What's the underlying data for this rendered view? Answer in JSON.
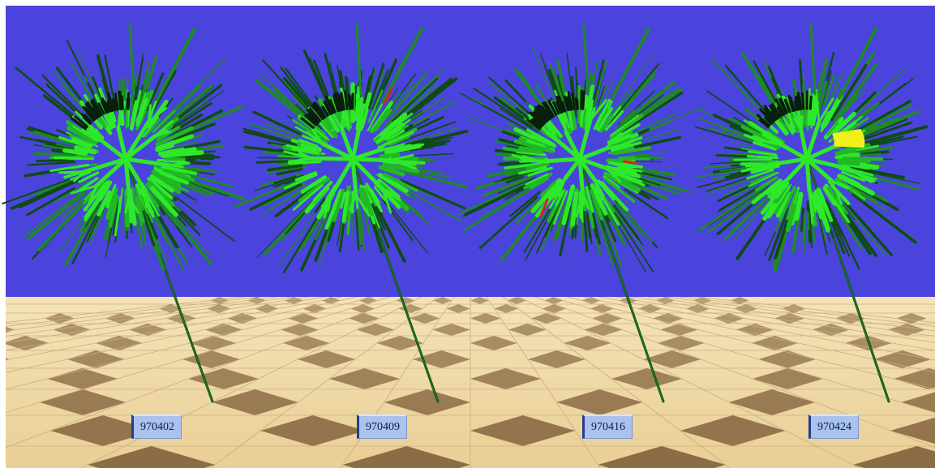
{
  "scene": {
    "sky_color": "#4a44dc",
    "floor_light": "#f1dcaa",
    "floor_dark": "#8a6a45",
    "branch_green": "#2ee82a",
    "branch_dark": "#0e4a14",
    "highlight_red": "#e0201c",
    "highlight_yellow": "#f2ef1a"
  },
  "snapshots": [
    {
      "label": "970402",
      "highlight": "none"
    },
    {
      "label": "970409",
      "highlight": "red"
    },
    {
      "label": "970416",
      "highlight": "red"
    },
    {
      "label": "970424",
      "highlight": "yellow"
    }
  ]
}
